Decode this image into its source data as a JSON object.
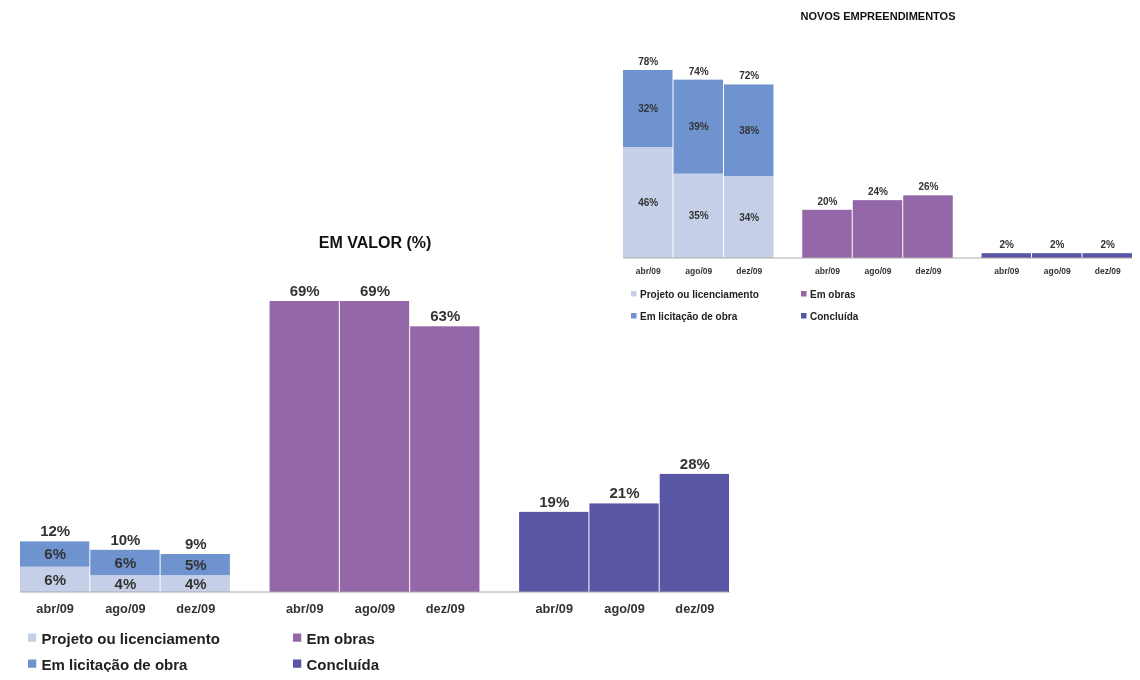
{
  "chart_data": [
    {
      "type": "bar",
      "title": "NOVOS EMPREENDIMENTOS",
      "stacked": true,
      "legend": "bottom",
      "categories": [
        "abr/09",
        "ago/09",
        "dez/09",
        "abr/09",
        "ago/09",
        "dez/09",
        "abr/09",
        "ago/09",
        "dez/09"
      ],
      "series": [
        {
          "name": "Projeto ou licenciamento",
          "color": "#c5d0e8",
          "values": [
            46,
            35,
            34,
            null,
            null,
            null,
            null,
            null,
            null
          ],
          "value_labels": [
            "46%",
            "35%",
            "34%",
            null,
            null,
            null,
            null,
            null,
            null
          ]
        },
        {
          "name": "Em licitação de obra",
          "color": "#6f93cf",
          "values": [
            32,
            39,
            38,
            null,
            null,
            null,
            null,
            null,
            null
          ],
          "value_labels": [
            "32%",
            "39%",
            "38%",
            null,
            null,
            null,
            null,
            null,
            null
          ]
        },
        {
          "name": "Em obras",
          "color": "#9467a8",
          "values": [
            null,
            null,
            null,
            20,
            24,
            26,
            null,
            null,
            null
          ],
          "value_labels": [
            null,
            null,
            null,
            "20%",
            "24%",
            "26%",
            null,
            null,
            null
          ]
        },
        {
          "name": "Concluída",
          "color": "#5a56a6",
          "values": [
            null,
            null,
            null,
            null,
            null,
            null,
            2,
            2,
            2
          ],
          "value_labels": [
            null,
            null,
            null,
            null,
            null,
            null,
            "2%",
            "2%",
            "2%"
          ]
        }
      ],
      "totals": [
        "78%",
        "74%",
        "72%",
        null,
        null,
        null,
        null,
        null,
        null
      ]
    },
    {
      "type": "bar",
      "title": "EM VALOR (%)",
      "stacked": true,
      "legend": "bottom",
      "categories": [
        "abr/09",
        "ago/09",
        "dez/09",
        "abr/09",
        "ago/09",
        "dez/09",
        "abr/09",
        "ago/09",
        "dez/09"
      ],
      "series": [
        {
          "name": "Projeto ou licenciamento",
          "color": "#c5d0e8",
          "values": [
            6,
            4,
            4,
            null,
            null,
            null,
            null,
            null,
            null
          ],
          "value_labels": [
            "6%",
            "4%",
            "4%",
            null,
            null,
            null,
            null,
            null,
            null
          ]
        },
        {
          "name": "Em licitação de obra",
          "color": "#6f93cf",
          "values": [
            6,
            6,
            5,
            null,
            null,
            null,
            null,
            null,
            null
          ],
          "value_labels": [
            "6%",
            "6%",
            "5%",
            null,
            null,
            null,
            null,
            null,
            null
          ]
        },
        {
          "name": "Em obras",
          "color": "#9467a8",
          "values": [
            null,
            null,
            null,
            69,
            69,
            63,
            null,
            null,
            null
          ],
          "value_labels": [
            null,
            null,
            null,
            "69%",
            "69%",
            "63%",
            null,
            null,
            null
          ]
        },
        {
          "name": "Concluída",
          "color": "#5a56a6",
          "values": [
            null,
            null,
            null,
            null,
            null,
            null,
            19,
            21,
            28
          ],
          "value_labels": [
            null,
            null,
            null,
            null,
            null,
            null,
            "19%",
            "21%",
            "28%"
          ]
        }
      ],
      "totals": [
        "12%",
        "10%",
        "9%",
        null,
        null,
        null,
        null,
        null,
        null
      ]
    }
  ]
}
